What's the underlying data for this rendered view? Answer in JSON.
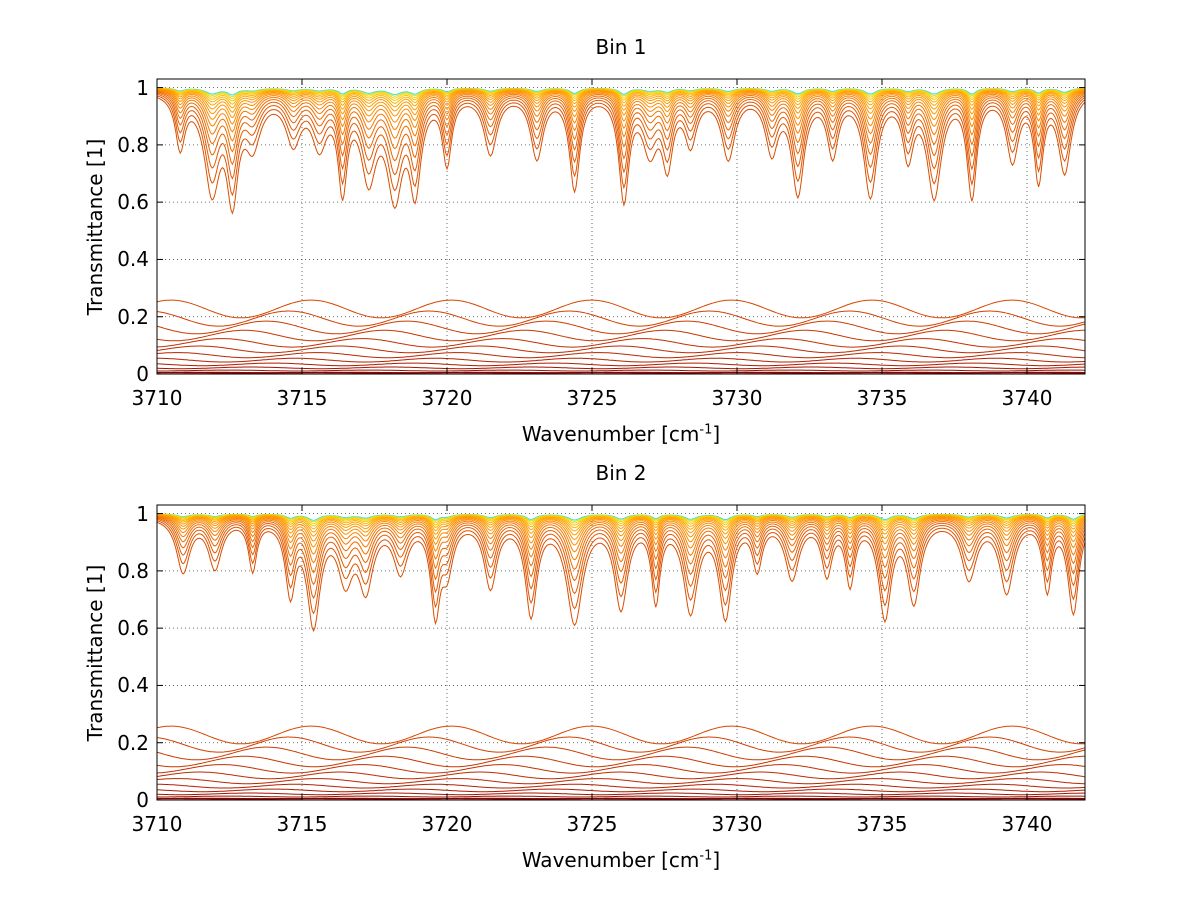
{
  "chart_data": [
    {
      "type": "line",
      "title": "Bin 1",
      "xlabel": "Wavenumber [cm",
      "xlabel_sup": "-1",
      "xlabel_end": "]",
      "ylabel": "Transmittance [1]",
      "xlim": [
        3710,
        3742
      ],
      "ylim": [
        0,
        1.03
      ],
      "xticks": [
        3710,
        3715,
        3720,
        3725,
        3730,
        3735,
        3740
      ],
      "xtick_labels": [
        "3710",
        "3715",
        "3720",
        "3725",
        "3730",
        "3735",
        "3740"
      ],
      "yticks": [
        0,
        0.2,
        0.4,
        0.6,
        0.8,
        1
      ],
      "ytick_labels": [
        "0",
        "0.2",
        "0.4",
        "0.6",
        "0.8",
        "1"
      ],
      "grid": true,
      "series_count": 30,
      "colormap": [
        "#8b0000",
        "#b22200",
        "#d04000",
        "#e86000",
        "#ff8c00",
        "#ffa500",
        "#ffd000",
        "#c8e632",
        "#40e0d0"
      ],
      "absorption_lines_cm1": [
        3710.8,
        3711.9,
        3712.6,
        3713.3,
        3714.7,
        3715.6,
        3716.4,
        3717.3,
        3718.2,
        3718.9,
        3720.0,
        3721.5,
        3723.1,
        3724.4,
        3726.1,
        3727.0,
        3727.6,
        3728.4,
        3729.7,
        3731.2,
        3732.1,
        3733.3,
        3734.6,
        3735.9,
        3736.8,
        3738.1,
        3739.5,
        3740.4,
        3741.3
      ]
    },
    {
      "type": "line",
      "title": "Bin 2",
      "xlabel": "Wavenumber [cm",
      "xlabel_sup": "-1",
      "xlabel_end": "]",
      "ylabel": "Transmittance [1]",
      "xlim": [
        3710,
        3742
      ],
      "ylim": [
        0,
        1.03
      ],
      "xticks": [
        3710,
        3715,
        3720,
        3725,
        3730,
        3735,
        3740
      ],
      "xtick_labels": [
        "3710",
        "3715",
        "3720",
        "3725",
        "3730",
        "3735",
        "3740"
      ],
      "yticks": [
        0,
        0.2,
        0.4,
        0.6,
        0.8,
        1
      ],
      "ytick_labels": [
        "0",
        "0.2",
        "0.4",
        "0.6",
        "0.8",
        "1"
      ],
      "grid": true,
      "series_count": 30,
      "colormap": [
        "#8b0000",
        "#b22200",
        "#d04000",
        "#e86000",
        "#ff8c00",
        "#ffa500",
        "#ffd000",
        "#c8e632",
        "#40e0d0"
      ],
      "absorption_lines_cm1": [
        3710.9,
        3712.0,
        3713.3,
        3714.6,
        3715.4,
        3716.5,
        3717.2,
        3718.4,
        3719.6,
        3720.0,
        3721.5,
        3722.9,
        3724.4,
        3726.0,
        3727.2,
        3728.4,
        3729.6,
        3730.7,
        3731.9,
        3733.1,
        3733.9,
        3735.1,
        3736.1,
        3738.0,
        3739.3,
        3740.7,
        3741.6
      ]
    }
  ]
}
